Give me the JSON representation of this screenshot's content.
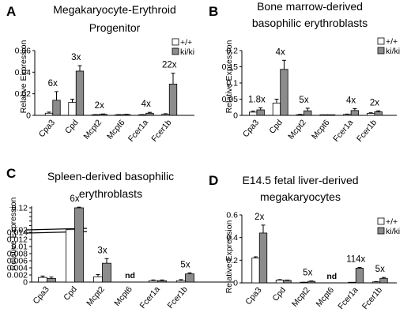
{
  "figure": {
    "ylabel": "Relative Expression",
    "colors": {
      "wt": "#ffffff",
      "ki": "#8c8c8c",
      "axis": "#000000"
    },
    "legend": {
      "wt": "+/+",
      "ki": "ki/ki",
      "placement": "top-right"
    }
  },
  "chart_data": [
    {
      "type": "bar",
      "panel": "A",
      "title": [
        "Megakaryocyte-Erythroid",
        "Progenitor"
      ],
      "categories": [
        "Cpa3",
        "Cpd",
        "Mcpt2",
        "Mcpt6",
        "Fcer1a",
        "Fcer1b"
      ],
      "series": [
        {
          "name": "+/+",
          "values": [
            0.002,
            0.012,
            0.0005,
            0.0005,
            0.0005,
            0.001
          ],
          "errors": [
            0.001,
            0.003,
            0.0002,
            0.0002,
            0.0002,
            0.0005
          ]
        },
        {
          "name": "ki/ki",
          "values": [
            0.014,
            0.041,
            0.001,
            0.0008,
            0.002,
            0.029
          ],
          "errors": [
            0.008,
            0.005,
            0.0003,
            0.0002,
            0.0008,
            0.01
          ]
        }
      ],
      "annotations": [
        "6x",
        "3x",
        "2x",
        "",
        "4x",
        "22x"
      ],
      "ylim": [
        0,
        0.06
      ],
      "yticks": [
        0,
        0.02,
        0.04,
        0.06
      ],
      "ytick_labels": [
        "0",
        "0.02",
        "0.04",
        "0.06"
      ],
      "xlabel": "",
      "ylabel": "Relative Expression",
      "grid": false
    },
    {
      "type": "bar",
      "panel": "B",
      "title": [
        "Bone marrow-derived",
        "basophilic erythroblasts"
      ],
      "categories": [
        "Cpa3",
        "Cpd",
        "Mcpt2",
        "Mcpt6",
        "Fcer1a",
        "Fcer1b"
      ],
      "series": [
        {
          "name": "+/+",
          "values": [
            0.01,
            0.038,
            0.002,
            0.0005,
            0.003,
            0.006
          ],
          "errors": [
            0.003,
            0.012,
            0.001,
            0.0002,
            0.001,
            0.002
          ]
        },
        {
          "name": "ki/ki",
          "values": [
            0.017,
            0.142,
            0.014,
            0.0005,
            0.015,
            0.011
          ],
          "errors": [
            0.006,
            0.028,
            0.008,
            0.0002,
            0.006,
            0.003
          ]
        }
      ],
      "annotations": [
        "1.8x",
        "4x",
        "5x",
        "",
        "4x",
        "2x"
      ],
      "ylim": [
        0,
        0.2
      ],
      "yticks": [
        0,
        0.05,
        0.1,
        0.15,
        0.2
      ],
      "ytick_labels": [
        "0",
        "0.05",
        "0.1",
        "0.15",
        "0.2"
      ],
      "xlabel": "",
      "ylabel": "Relative Expression",
      "grid": false
    },
    {
      "type": "bar",
      "panel": "C",
      "title": [
        "Spleen-derived basophilic",
        "erythroblasts"
      ],
      "categories": [
        "Cpa3",
        "Cpd",
        "Mcpt2",
        "Mcpt6",
        "Fcer1a",
        "Fcer1b"
      ],
      "series": [
        {
          "name": "+/+",
          "values": [
            0.0013,
            0.021,
            0.0015,
            0.0,
            0.0004,
            0.0004
          ],
          "errors": [
            0.0004,
            0.0,
            0.0006,
            0.0,
            0.0002,
            0.0003
          ]
        },
        {
          "name": "ki/ki",
          "values": [
            0.001,
            0.12,
            0.0053,
            0.0,
            0.0004,
            0.0023
          ],
          "errors": [
            0.0004,
            0.003,
            0.0013,
            0.0,
            0.0002,
            0.0003
          ]
        }
      ],
      "annotations": [
        "",
        "6x",
        "3x",
        "nd",
        "",
        "5x"
      ],
      "ylim": [
        0,
        0.12
      ],
      "axis_break": {
        "lower": [
          0,
          0.014
        ],
        "upper": [
          0.02,
          0.12
        ]
      },
      "yticks_lower": [
        0,
        0.002,
        0.004,
        0.006,
        0.008,
        0.01,
        0.012,
        0.014
      ],
      "ytick_labels_lower": [
        "0",
        "0.002",
        "0.004",
        "0.006",
        "0.008",
        "0.01",
        "0.012",
        "0.014"
      ],
      "yticks_upper": [
        0.02,
        0.04,
        0.06,
        0.08,
        0.1,
        0.12
      ],
      "ytick_labels_upper": [
        "0.02",
        "0.04",
        "0.06",
        "0.08",
        "0.1",
        "0.12"
      ],
      "xlabel": "",
      "ylabel": "Relative Expression",
      "grid": false
    },
    {
      "type": "bar",
      "panel": "D",
      "title": [
        "E14.5 fetal liver-derived",
        "megakaryocytes"
      ],
      "categories": [
        "Cpa3",
        "Cpd",
        "Mcpt2",
        "Mcpt6",
        "Fcer1a",
        "Fcer1b"
      ],
      "series": [
        {
          "name": "+/+",
          "values": [
            0.22,
            0.025,
            0.003,
            0.0,
            0.001,
            0.008
          ],
          "errors": [
            0.01,
            0.004,
            0.002,
            0.0,
            0.0005,
            0.003
          ]
        },
        {
          "name": "ki/ki",
          "values": [
            0.44,
            0.022,
            0.013,
            0.0,
            0.13,
            0.04
          ],
          "errors": [
            0.07,
            0.003,
            0.004,
            0.0,
            0.006,
            0.008
          ]
        }
      ],
      "annotations": [
        "2x",
        "",
        "5x",
        "nd",
        "114x",
        "5x"
      ],
      "ylim": [
        0,
        0.6
      ],
      "yticks": [
        0,
        0.2,
        0.4,
        0.6
      ],
      "ytick_labels": [
        "0",
        "0.2",
        "0.4",
        "0.6"
      ],
      "xlabel": "",
      "ylabel": "Relative Expression",
      "grid": false
    }
  ]
}
